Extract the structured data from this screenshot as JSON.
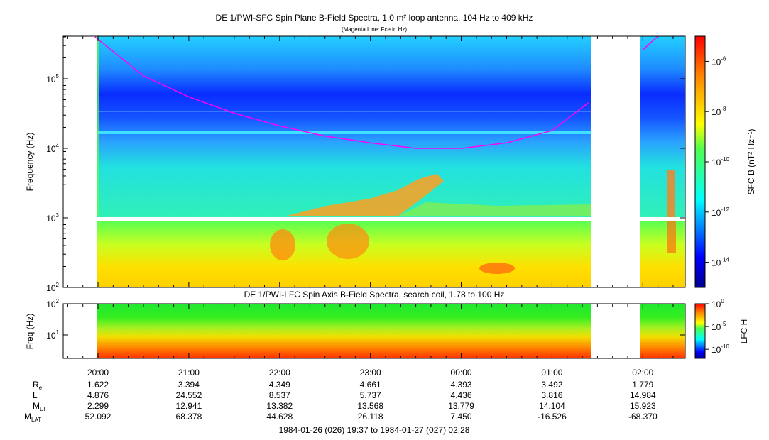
{
  "chart_data": [
    {
      "type": "heatmap",
      "title": "DE 1/PWI-SFC  Spin Plane B-Field Spectra, 1.0 m² loop antenna, 104 Hz to 409 kHz",
      "subtitle": "(Magenta Line: Fce in Hz)",
      "ylabel": "Frequency (Hz)",
      "y_scale": "log",
      "ylim": [
        100,
        409000
      ],
      "y_ticks": [
        {
          "base": "10",
          "exp": "2",
          "value": 100
        },
        {
          "base": "10",
          "exp": "3",
          "value": 1000
        },
        {
          "base": "10",
          "exp": "4",
          "value": 10000
        },
        {
          "base": "10",
          "exp": "5",
          "value": 100000
        }
      ],
      "colorbar_label": "SFC B (nT² Hz⁻¹)",
      "colorbar_scale": "log",
      "colorbar_range": [
        1e-15,
        1e-05
      ],
      "colorbar_ticks": [
        {
          "base": "10",
          "exp": "-6",
          "value": 1e-06
        },
        {
          "base": "10",
          "exp": "-8",
          "value": 1e-08
        },
        {
          "base": "10",
          "exp": "-10",
          "value": 1e-10
        },
        {
          "base": "10",
          "exp": "-12",
          "value": 1e-12
        },
        {
          "base": "10",
          "exp": "-14",
          "value": 1e-14
        }
      ],
      "data_gaps": [
        {
          "start": "1984-01-26 19:37",
          "end": "1984-01-26 19:58"
        },
        {
          "start": "1984-01-27 01:24",
          "end": "1984-01-27 02:00"
        }
      ],
      "fce_line": {
        "color": "#ff00ff",
        "time": [
          "19:58",
          "20:30",
          "21:00",
          "21:30",
          "22:00",
          "22:30",
          "23:00",
          "23:30",
          "00:00",
          "00:30",
          "01:00",
          "01:24",
          "02:00",
          "02:10"
        ],
        "freq_hz": [
          400000,
          110000,
          55000,
          32000,
          21000,
          15000,
          12000,
          10000,
          10000,
          12000,
          18000,
          45000,
          260000,
          409000
        ]
      }
    },
    {
      "type": "heatmap",
      "title": "DE 1/PWI-LFC  Spin Axis B-Field Spectra, search coil, 1.78 to 100 Hz",
      "ylabel": "Freq (Hz)",
      "y_scale": "log",
      "ylim": [
        1.78,
        100
      ],
      "y_ticks": [
        {
          "base": "10",
          "exp": "1",
          "value": 10
        },
        {
          "base": "10",
          "exp": "2",
          "value": 100
        }
      ],
      "colorbar_label": "LFC H",
      "colorbar_scale": "log",
      "colorbar_range": [
        1e-12,
        1
      ],
      "colorbar_ticks": [
        {
          "base": "10",
          "exp": "0",
          "value": 1
        },
        {
          "base": "10",
          "exp": "-5",
          "value": 1e-05
        },
        {
          "base": "10",
          "exp": "-10",
          "value": 1e-10
        }
      ]
    }
  ],
  "time_axis": {
    "start": "1984-01-26 19:37",
    "end": "1984-01-27 02:28",
    "ticks": [
      "20:00",
      "21:00",
      "22:00",
      "23:00",
      "00:00",
      "01:00",
      "02:00"
    ],
    "label": "1984-01-26 (026) 19:37 to 1984-01-27 (027) 02:28"
  },
  "ephemeris": {
    "rows": [
      {
        "label": "R",
        "sub": "e",
        "values": [
          "1.622",
          "3.394",
          "4.349",
          "4.661",
          "4.393",
          "3.492",
          "1.779"
        ]
      },
      {
        "label": "L",
        "sub": "",
        "values": [
          "4.876",
          "24.552",
          "8.537",
          "5.737",
          "4.436",
          "3.816",
          "14.984"
        ]
      },
      {
        "label": "M",
        "sub": "LT",
        "values": [
          "2.299",
          "12.941",
          "13.382",
          "13.568",
          "13.779",
          "14.104",
          "15.923"
        ]
      },
      {
        "label": "M",
        "sub": "LAT",
        "values": [
          "52.092",
          "68.378",
          "44.628",
          "26.118",
          "7.450",
          "-16.526",
          "-68.370"
        ]
      }
    ]
  }
}
